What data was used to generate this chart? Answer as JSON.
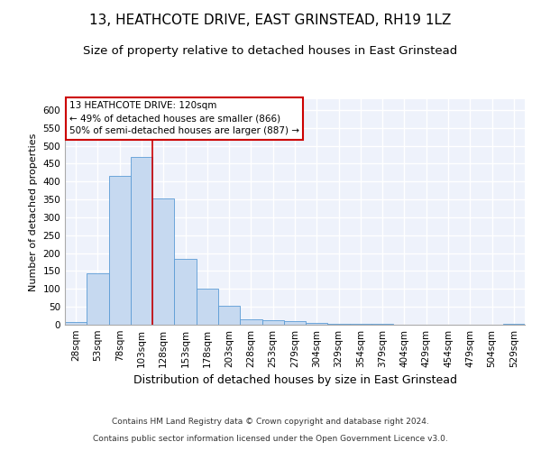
{
  "title_line1": "13, HEATHCOTE DRIVE, EAST GRINSTEAD, RH19 1LZ",
  "title_line2": "Size of property relative to detached houses in East Grinstead",
  "xlabel": "Distribution of detached houses by size in East Grinstead",
  "ylabel": "Number of detached properties",
  "footnote1": "Contains HM Land Registry data © Crown copyright and database right 2024.",
  "footnote2": "Contains public sector information licensed under the Open Government Licence v3.0.",
  "bin_labels": [
    "28sqm",
    "53sqm",
    "78sqm",
    "103sqm",
    "128sqm",
    "153sqm",
    "178sqm",
    "203sqm",
    "228sqm",
    "253sqm",
    "279sqm",
    "304sqm",
    "329sqm",
    "354sqm",
    "379sqm",
    "404sqm",
    "429sqm",
    "454sqm",
    "479sqm",
    "504sqm",
    "529sqm"
  ],
  "bar_values": [
    8,
    143,
    415,
    468,
    354,
    185,
    102,
    53,
    15,
    12,
    9,
    5,
    3,
    3,
    2,
    0,
    0,
    0,
    0,
    0,
    3
  ],
  "bar_color": "#c6d9f0",
  "bar_edge_color": "#5b9bd5",
  "bar_width": 1.0,
  "vline_bin": 4,
  "vline_color": "#cc0000",
  "annotation_text_line1": "13 HEATHCOTE DRIVE: 120sqm",
  "annotation_text_line2": "← 49% of detached houses are smaller (866)",
  "annotation_text_line3": "50% of semi-detached houses are larger (887) →",
  "ylim": [
    0,
    630
  ],
  "yticks": [
    0,
    50,
    100,
    150,
    200,
    250,
    300,
    350,
    400,
    450,
    500,
    550,
    600
  ],
  "bg_color": "#eef2fb",
  "grid_color": "#ffffff",
  "title1_fontsize": 11,
  "title2_fontsize": 9.5,
  "xlabel_fontsize": 9,
  "ylabel_fontsize": 8,
  "tick_fontsize": 7.5,
  "footnote_fontsize": 6.5,
  "annot_fontsize": 7.5
}
